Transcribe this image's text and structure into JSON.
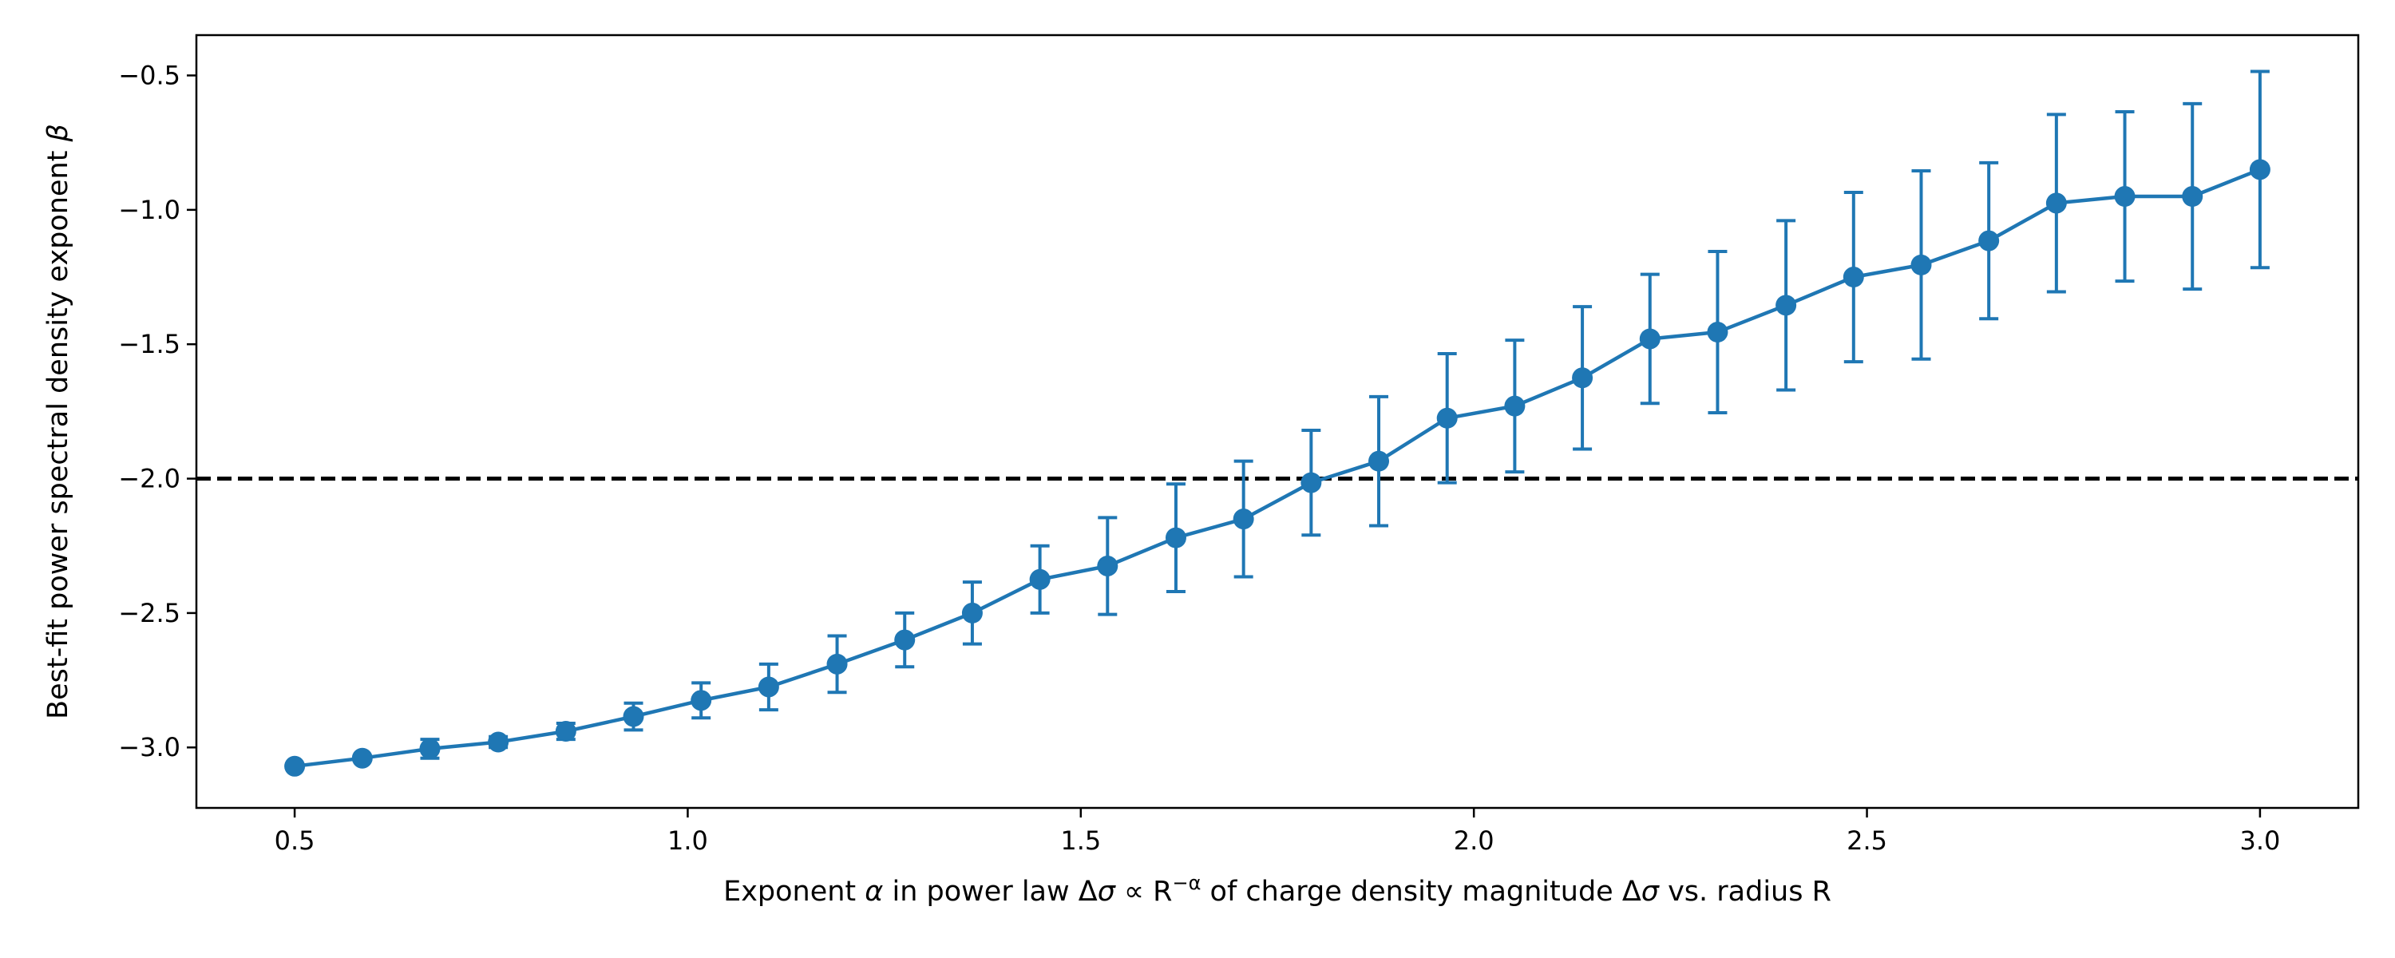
{
  "chart_data": {
    "type": "line",
    "title": "",
    "xlabel": {
      "prefix": "Exponent ",
      "alpha": "α",
      "mid": " in power law Δ",
      "sigma": "σ",
      "prop": " ∝ R",
      "sup": "−α",
      "rest": " of charge density magnitude Δ",
      "sigma2": "σ",
      "end": " vs. radius R"
    },
    "ylabel": {
      "text": "Best-fit power spectral density exponent ",
      "beta": "β"
    },
    "xlim": [
      0.375,
      3.125
    ],
    "ylim": [
      -3.225,
      -0.35
    ],
    "xticks": [
      0.5,
      1.0,
      1.5,
      2.0,
      2.5,
      3.0
    ],
    "xtick_labels": [
      "0.5",
      "1.0",
      "1.5",
      "2.0",
      "2.5",
      "3.0"
    ],
    "yticks": [
      -3.0,
      -2.5,
      -2.0,
      -1.5,
      -1.0,
      -0.5
    ],
    "ytick_labels": [
      "−3.0",
      "−2.5",
      "−2.0",
      "−1.5",
      "−1.0",
      "−0.5"
    ],
    "grid": false,
    "color": "#1f77b4",
    "reference_line": {
      "y": -2.0,
      "style": "dashed",
      "color": "#000000"
    },
    "series": [
      {
        "x": [
          0.5,
          0.586,
          0.672,
          0.759,
          0.845,
          0.931,
          1.017,
          1.103,
          1.19,
          1.276,
          1.362,
          1.448,
          1.534,
          1.621,
          1.707,
          1.793,
          1.879,
          1.966,
          2.052,
          2.138,
          2.224,
          2.31,
          2.397,
          2.483,
          2.569,
          2.655,
          2.741,
          2.828,
          2.914,
          3.0
        ],
        "y": [
          -3.07,
          -3.04,
          -3.005,
          -2.98,
          -2.94,
          -2.885,
          -2.825,
          -2.775,
          -2.69,
          -2.6,
          -2.5,
          -2.375,
          -2.325,
          -2.22,
          -2.15,
          -2.015,
          -1.935,
          -1.775,
          -1.73,
          -1.625,
          -1.48,
          -1.455,
          -1.355,
          -1.25,
          -1.205,
          -1.115,
          -0.975,
          -0.95,
          -0.95,
          -0.85
        ],
        "yerr": [
          0.0,
          0.0,
          0.035,
          0.02,
          0.03,
          0.05,
          0.065,
          0.085,
          0.105,
          0.1,
          0.115,
          0.125,
          0.18,
          0.2,
          0.215,
          0.195,
          0.24,
          0.24,
          0.245,
          0.265,
          0.24,
          0.3,
          0.315,
          0.315,
          0.35,
          0.29,
          0.33,
          0.315,
          0.345,
          0.365
        ]
      }
    ]
  }
}
